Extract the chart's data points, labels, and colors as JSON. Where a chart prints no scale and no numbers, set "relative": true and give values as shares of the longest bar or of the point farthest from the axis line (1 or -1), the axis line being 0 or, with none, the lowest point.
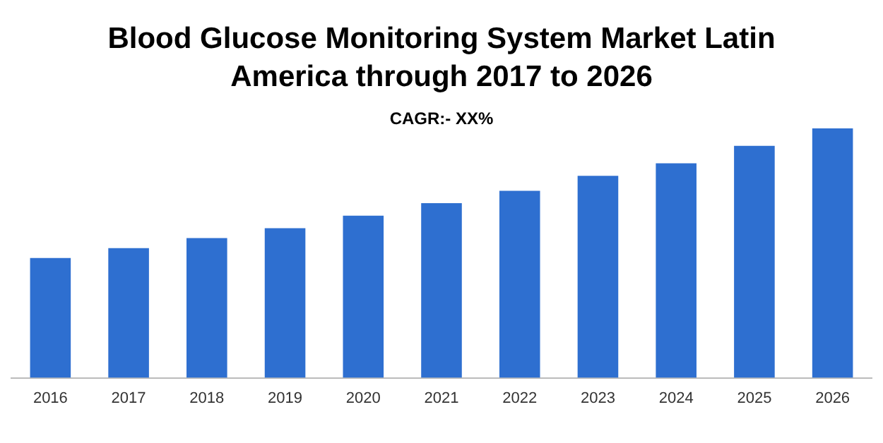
{
  "chart_data": {
    "type": "bar",
    "title": "Blood Glucose Monitoring System Market Latin America through 2017 to 2026",
    "subtitle": "CAGR:- XX%",
    "categories": [
      "2016",
      "2017",
      "2018",
      "2019",
      "2020",
      "2021",
      "2022",
      "2023",
      "2024",
      "2025",
      "2026"
    ],
    "values": [
      0.48,
      0.52,
      0.56,
      0.6,
      0.65,
      0.7,
      0.75,
      0.81,
      0.86,
      0.93,
      1
    ],
    "color": "#2e6fd0",
    "relative": true,
    "grid": false,
    "legend": false
  }
}
